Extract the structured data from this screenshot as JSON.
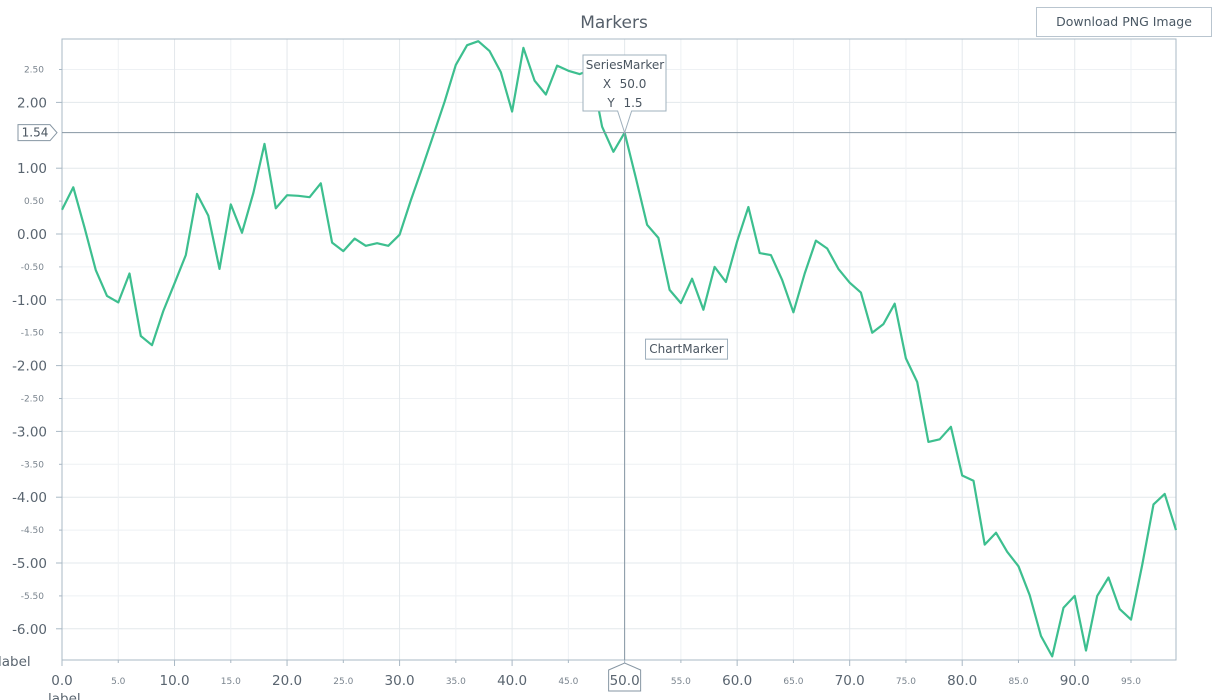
{
  "chart_data": {
    "type": "line",
    "title": "Markers",
    "xlabel": "label",
    "ylabel": "label",
    "xlim": [
      0,
      99
    ],
    "ylim": [
      -6.4,
      3.0
    ],
    "grid": true,
    "x_ticks_major": [
      "0.0",
      "10.0",
      "20.0",
      "30.0",
      "40.0",
      "50.0",
      "60.0",
      "70.0",
      "80.0",
      "90.0"
    ],
    "x_ticks_minor": [
      "5.0",
      "15.0",
      "25.0",
      "35.0",
      "45.0",
      "55.0",
      "65.0",
      "75.0",
      "85.0",
      "95.0"
    ],
    "y_ticks_major": [
      "2.00",
      "1.00",
      "0.00",
      "-1.00",
      "-2.00",
      "-3.00",
      "-4.00",
      "-5.00",
      "-6.00"
    ],
    "y_ticks_minor": [
      "2.50",
      "0.50",
      "-0.50",
      "-1.50",
      "-2.50",
      "-3.50",
      "-4.50",
      "-5.50"
    ],
    "series": [
      {
        "color": "#3dbf8f",
        "x": [
          0,
          1,
          2,
          3,
          4,
          5,
          6,
          7,
          8,
          9,
          10,
          11,
          12,
          13,
          14,
          15,
          16,
          17,
          18,
          19,
          20,
          21,
          22,
          23,
          24,
          25,
          26,
          27,
          28,
          29,
          30,
          31,
          32,
          33,
          34,
          35,
          36,
          37,
          38,
          39,
          40,
          41,
          42,
          43,
          44,
          45,
          46,
          47,
          48,
          49,
          50,
          51,
          52,
          53,
          54,
          55,
          56,
          57,
          58,
          59,
          60,
          61,
          62,
          63,
          64,
          65,
          66,
          67,
          68,
          69,
          70,
          71,
          72,
          73,
          74,
          75,
          76,
          77,
          78,
          79,
          80,
          81,
          82,
          83,
          84,
          85,
          86,
          87,
          88,
          89,
          90,
          91,
          92,
          93,
          94,
          95,
          96,
          97,
          98,
          99
        ],
        "values": [
          0.37,
          0.71,
          0.1,
          -0.55,
          -0.94,
          -1.04,
          -0.6,
          -1.55,
          -1.69,
          -1.17,
          -0.75,
          -0.32,
          0.61,
          0.28,
          -0.53,
          0.45,
          0.02,
          0.62,
          1.37,
          0.39,
          0.59,
          0.58,
          0.56,
          0.77,
          -0.13,
          -0.26,
          -0.07,
          -0.18,
          -0.14,
          -0.18,
          -0.01,
          0.51,
          1.0,
          1.5,
          2.01,
          2.57,
          2.87,
          2.93,
          2.78,
          2.46,
          1.86,
          2.83,
          2.33,
          2.12,
          2.56,
          2.48,
          2.43,
          2.5,
          1.63,
          1.25,
          1.54,
          0.85,
          0.14,
          -0.06,
          -0.85,
          -1.05,
          -0.68,
          -1.15,
          -0.5,
          -0.73,
          -0.11,
          0.41,
          -0.29,
          -0.32,
          -0.7,
          -1.19,
          -0.6,
          -0.1,
          -0.22,
          -0.53,
          -0.74,
          -0.89,
          -1.5,
          -1.37,
          -1.06,
          -1.89,
          -2.25,
          -3.16,
          -3.12,
          -2.93,
          -3.67,
          -3.75,
          -4.72,
          -4.54,
          -4.83,
          -5.05,
          -5.49,
          -6.11,
          -6.42,
          -5.68,
          -5.5,
          -6.33,
          -5.5,
          -5.22,
          -5.7,
          -5.86,
          -5.03,
          -4.11,
          -3.95,
          -4.5
        ]
      }
    ],
    "series_marker": {
      "title": "SeriesMarker",
      "x_label": "X",
      "x_value": "50.0",
      "y_label": "Y",
      "y_value": "1.5"
    },
    "chart_marker": {
      "label": "ChartMarker",
      "x": 55.5,
      "y": -1.75
    },
    "cursor": {
      "x": 50.0,
      "y": 1.54,
      "x_label": "50.0",
      "y_label": "1.54"
    },
    "line_color": "#3dbf8f",
    "grid_color": "#e3e8ec",
    "axis_color": "#a9b8c4"
  },
  "toolbar": {
    "download_label": "Download PNG Image"
  }
}
